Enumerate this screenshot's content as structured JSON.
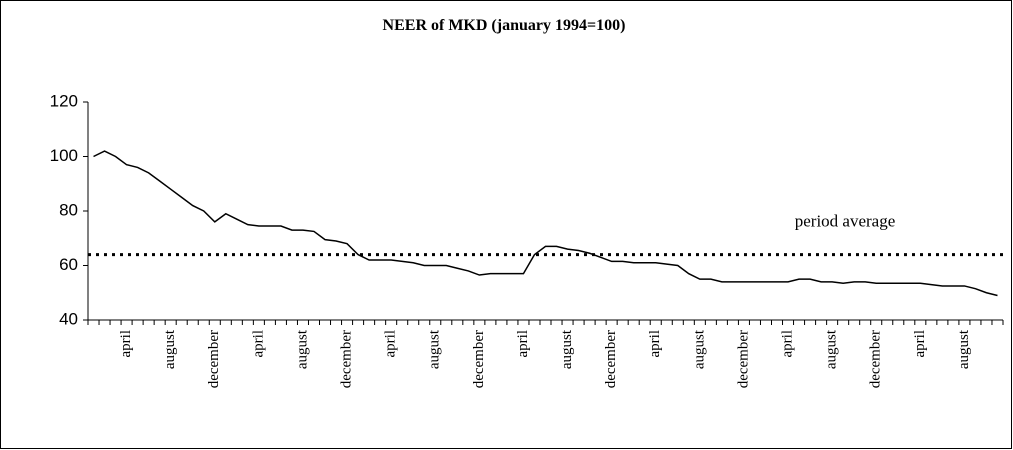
{
  "chart_data": {
    "type": "line",
    "title": "NEER of MKD (january 1994=100)",
    "categories": [
      null,
      null,
      null,
      "april",
      null,
      null,
      null,
      "august",
      null,
      null,
      null,
      "december",
      null,
      null,
      null,
      "april",
      null,
      null,
      null,
      "august",
      null,
      null,
      null,
      "december",
      null,
      null,
      null,
      "april",
      null,
      null,
      null,
      "august",
      null,
      null,
      null,
      "december",
      null,
      null,
      null,
      "april",
      null,
      null,
      null,
      "august",
      null,
      null,
      null,
      "december",
      null,
      null,
      null,
      "april",
      null,
      null,
      null,
      "august",
      null,
      null,
      null,
      "december",
      null,
      null,
      null,
      "april",
      null,
      null,
      null,
      "august",
      null,
      null,
      null,
      "december",
      null,
      null,
      null,
      "april",
      null,
      null,
      null,
      "august",
      null,
      null,
      null
    ],
    "values": [
      100,
      102,
      100,
      97,
      96,
      94,
      91,
      88,
      85,
      82,
      80,
      76,
      79,
      77,
      75,
      74.5,
      74.5,
      74.5,
      73,
      73,
      72.5,
      69.5,
      69,
      68,
      64,
      62,
      62,
      62,
      61.5,
      61,
      60,
      60,
      60,
      59,
      58,
      56.5,
      57,
      57,
      57,
      57,
      64,
      67,
      67,
      66,
      65.5,
      64.5,
      63,
      61.5,
      61.5,
      61,
      61,
      61,
      60.5,
      60,
      57,
      55,
      55,
      54,
      54,
      54,
      54,
      54,
      54,
      54,
      55,
      55,
      54,
      54,
      53.5,
      54,
      54,
      53.5,
      53.5,
      53.5,
      53.5,
      53.5,
      53,
      52.5,
      52.5,
      52.5,
      51.5,
      50,
      49
    ],
    "color": "#000000",
    "average": {
      "label": "period average",
      "value": 64
    },
    "ylim": [
      40,
      120
    ],
    "yticks": [
      40,
      60,
      80,
      100,
      120
    ]
  }
}
